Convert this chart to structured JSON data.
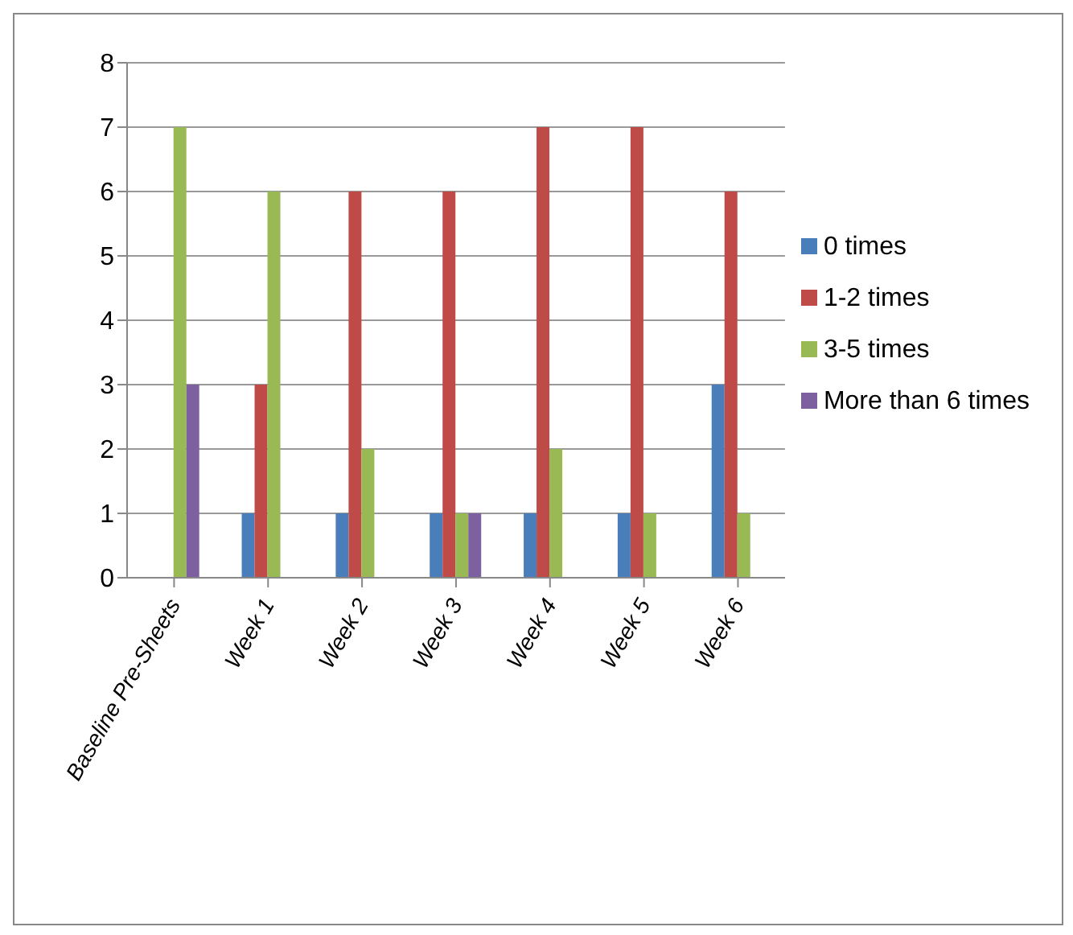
{
  "chart_data": {
    "type": "bar",
    "categories": [
      "Baseline Pre-Sheets",
      "Week 1",
      "Week 2",
      "Week 3",
      "Week 4",
      "Week 5",
      "Week 6"
    ],
    "series": [
      {
        "name": "0 times",
        "color": "#4a7ebb",
        "values": [
          0,
          1,
          1,
          1,
          1,
          1,
          3
        ]
      },
      {
        "name": "1-2 times",
        "color": "#be4b48",
        "values": [
          0,
          3,
          6,
          6,
          7,
          7,
          6
        ]
      },
      {
        "name": "3-5 times",
        "color": "#98b954",
        "values": [
          7,
          6,
          2,
          1,
          2,
          1,
          1
        ]
      },
      {
        "name": "More than 6 times",
        "color": "#7d60a0",
        "values": [
          3,
          0,
          0,
          1,
          0,
          0,
          0
        ]
      }
    ],
    "ylim": [
      0,
      8
    ],
    "yticks": [
      0,
      1,
      2,
      3,
      4,
      5,
      6,
      7,
      8
    ],
    "grid": "y",
    "legend": "right"
  }
}
